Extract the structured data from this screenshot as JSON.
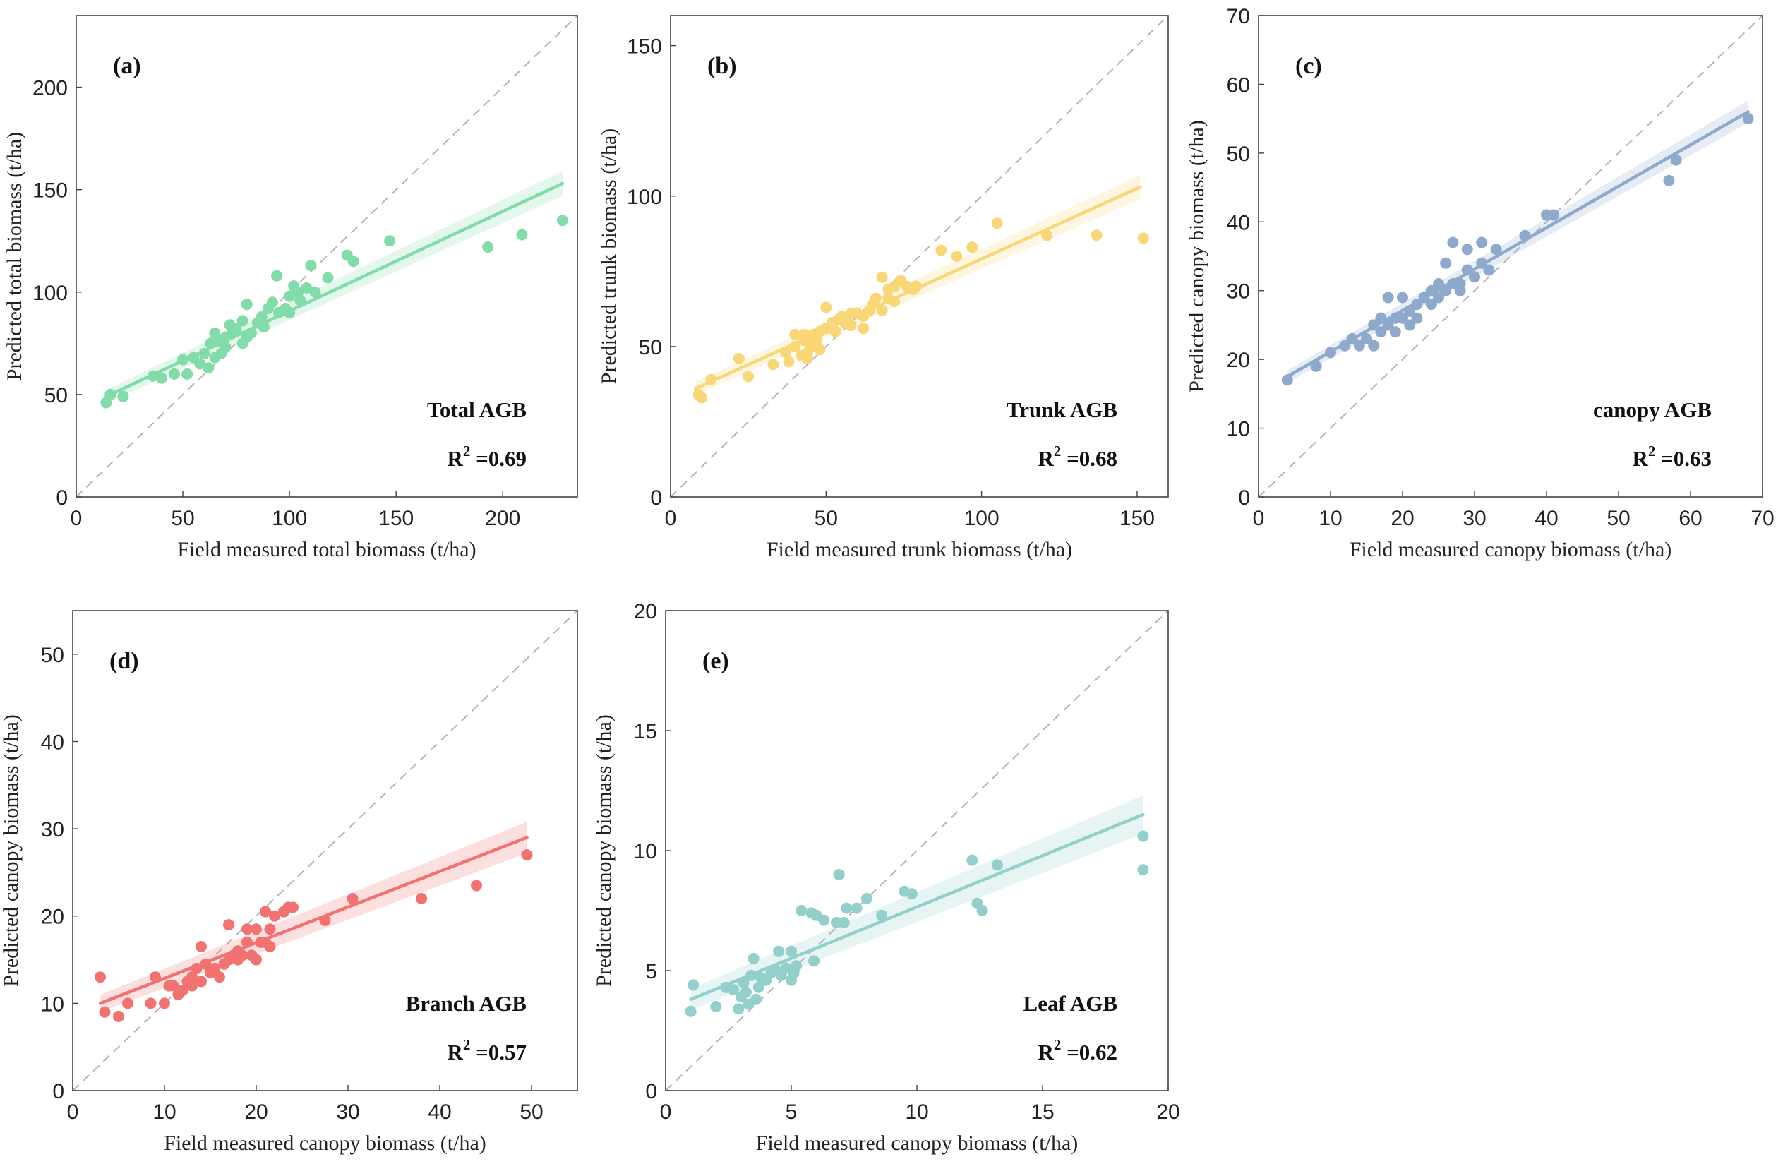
{
  "chart_data": [
    {
      "type": "scatter",
      "panel": "(a)",
      "title": "",
      "xlabel": "Field measured total biomass (t/ha)",
      "ylabel": "Predicted total biomass (t/ha)",
      "xlim": [
        0,
        235
      ],
      "ylim": [
        0,
        235
      ],
      "xticks": [
        0,
        50,
        100,
        150,
        200
      ],
      "yticks": [
        0,
        50,
        100,
        150,
        200
      ],
      "tick_labels_x": [
        "0",
        "50",
        "100",
        "150",
        "200"
      ],
      "tick_labels_y": [
        "0",
        "50",
        "100",
        "150",
        "200"
      ],
      "annotation": "Total AGB",
      "r2_label": "R",
      "r2_sup": "2",
      "r2_value": " =0.69",
      "color": "#82DCAA",
      "fit": {
        "x0": 14,
        "y0": 49,
        "x1": 228,
        "y1": 153,
        "band": 6
      },
      "points": [
        [
          14,
          46
        ],
        [
          16,
          50
        ],
        [
          22,
          49
        ],
        [
          36,
          59
        ],
        [
          40,
          58
        ],
        [
          46,
          60
        ],
        [
          50,
          67
        ],
        [
          52,
          60
        ],
        [
          55,
          68
        ],
        [
          58,
          65
        ],
        [
          60,
          70
        ],
        [
          62,
          63
        ],
        [
          63,
          75
        ],
        [
          65,
          68
        ],
        [
          65,
          80
        ],
        [
          67,
          76
        ],
        [
          68,
          70
        ],
        [
          70,
          73
        ],
        [
          70,
          78
        ],
        [
          72,
          84
        ],
        [
          73,
          80
        ],
        [
          75,
          82
        ],
        [
          78,
          75
        ],
        [
          78,
          86
        ],
        [
          80,
          78
        ],
        [
          80,
          94
        ],
        [
          82,
          80
        ],
        [
          85,
          85
        ],
        [
          87,
          88
        ],
        [
          88,
          83
        ],
        [
          90,
          92
        ],
        [
          92,
          95
        ],
        [
          94,
          108
        ],
        [
          95,
          90
        ],
        [
          98,
          92
        ],
        [
          100,
          98
        ],
        [
          100,
          90
        ],
        [
          102,
          103
        ],
        [
          104,
          100
        ],
        [
          105,
          96
        ],
        [
          108,
          102
        ],
        [
          110,
          113
        ],
        [
          112,
          100
        ],
        [
          118,
          107
        ],
        [
          127,
          118
        ],
        [
          130,
          115
        ],
        [
          147,
          125
        ],
        [
          193,
          122
        ],
        [
          209,
          128
        ],
        [
          228,
          135
        ]
      ]
    },
    {
      "type": "scatter",
      "panel": "(b)",
      "title": "",
      "xlabel": "Field measured trunk biomass (t/ha)",
      "ylabel": "Predicted trunk biomass (t/ha)",
      "xlim": [
        0,
        160
      ],
      "ylim": [
        0,
        160
      ],
      "xticks": [
        0,
        50,
        100,
        150
      ],
      "yticks": [
        0,
        50,
        100,
        150
      ],
      "tick_labels_x": [
        "0",
        "50",
        "100",
        "150"
      ],
      "tick_labels_y": [
        "0",
        "50",
        "100",
        "150"
      ],
      "annotation": "Trunk AGB",
      "r2_label": "R",
      "r2_sup": "2",
      "r2_value": " =0.68",
      "color": "#FAD776",
      "fit": {
        "x0": 8,
        "y0": 36,
        "x1": 151,
        "y1": 103,
        "band": 4
      },
      "points": [
        [
          9,
          34
        ],
        [
          10,
          33
        ],
        [
          13,
          39
        ],
        [
          22,
          46
        ],
        [
          25,
          40
        ],
        [
          33,
          44
        ],
        [
          37,
          48
        ],
        [
          38,
          45
        ],
        [
          40,
          54
        ],
        [
          40,
          50
        ],
        [
          42,
          47
        ],
        [
          43,
          52
        ],
        [
          43,
          54
        ],
        [
          44,
          48
        ],
        [
          44,
          46
        ],
        [
          45,
          51
        ],
        [
          46,
          50
        ],
        [
          46,
          54
        ],
        [
          47,
          52
        ],
        [
          48,
          49
        ],
        [
          48,
          55
        ],
        [
          50,
          63
        ],
        [
          50,
          56
        ],
        [
          52,
          58
        ],
        [
          53,
          55
        ],
        [
          54,
          59
        ],
        [
          55,
          60
        ],
        [
          56,
          58
        ],
        [
          58,
          57
        ],
        [
          58,
          61
        ],
        [
          60,
          61
        ],
        [
          62,
          56
        ],
        [
          62,
          60
        ],
        [
          64,
          62
        ],
        [
          65,
          64
        ],
        [
          66,
          66
        ],
        [
          68,
          62
        ],
        [
          68,
          73
        ],
        [
          70,
          66
        ],
        [
          70,
          69
        ],
        [
          72,
          65
        ],
        [
          72,
          70
        ],
        [
          74,
          72
        ],
        [
          76,
          70
        ],
        [
          78,
          69
        ],
        [
          79,
          70
        ],
        [
          87,
          82
        ],
        [
          92,
          80
        ],
        [
          97,
          83
        ],
        [
          105,
          91
        ],
        [
          121,
          87
        ],
        [
          137,
          87
        ],
        [
          152,
          86
        ]
      ]
    },
    {
      "type": "scatter",
      "panel": "(c)",
      "title": "",
      "xlabel": "Field measured canopy biomass (t/ha)",
      "ylabel": "Predicted canopy biomass (t/ha)",
      "xlim": [
        0,
        70
      ],
      "ylim": [
        0,
        70
      ],
      "xticks": [
        0,
        10,
        20,
        30,
        40,
        50,
        60,
        70
      ],
      "yticks": [
        0,
        10,
        20,
        30,
        40,
        50,
        60,
        70
      ],
      "tick_labels_x": [
        "0",
        "10",
        "20",
        "30",
        "40",
        "50",
        "60",
        "70"
      ],
      "tick_labels_y": [
        "0",
        "10",
        "20",
        "30",
        "40",
        "50",
        "60",
        "70"
      ],
      "annotation": "canopy AGB",
      "r2_label": "R",
      "r2_sup": "2",
      "r2_value": " =0.63",
      "color": "#8FA9CC",
      "fit": {
        "x0": 4,
        "y0": 17.5,
        "x1": 68,
        "y1": 56,
        "band": 1.6
      },
      "points": [
        [
          4,
          17
        ],
        [
          8,
          19
        ],
        [
          10,
          21
        ],
        [
          12,
          22
        ],
        [
          13,
          23
        ],
        [
          14,
          22
        ],
        [
          15,
          23
        ],
        [
          16,
          25
        ],
        [
          16,
          22
        ],
        [
          17,
          26
        ],
        [
          17,
          24
        ],
        [
          18,
          25
        ],
        [
          18,
          29
        ],
        [
          19,
          26
        ],
        [
          19,
          24
        ],
        [
          20,
          26
        ],
        [
          20,
          29
        ],
        [
          21,
          25
        ],
        [
          21,
          27
        ],
        [
          22,
          28
        ],
        [
          22,
          26
        ],
        [
          23,
          29
        ],
        [
          24,
          30
        ],
        [
          24,
          28
        ],
        [
          25,
          29
        ],
        [
          25,
          31
        ],
        [
          26,
          30
        ],
        [
          26,
          34
        ],
        [
          27,
          31
        ],
        [
          27,
          37
        ],
        [
          28,
          31
        ],
        [
          28,
          30
        ],
        [
          29,
          36
        ],
        [
          29,
          33
        ],
        [
          30,
          32
        ],
        [
          31,
          37
        ],
        [
          31,
          34
        ],
        [
          32,
          33
        ],
        [
          33,
          36
        ],
        [
          37,
          38
        ],
        [
          40,
          41
        ],
        [
          41,
          41
        ],
        [
          57,
          46
        ],
        [
          58,
          49
        ],
        [
          68,
          55
        ]
      ]
    },
    {
      "type": "scatter",
      "panel": "(d)",
      "title": "",
      "xlabel": "Field measured canopy biomass (t/ha)",
      "ylabel": "Predicted canopy biomass (t/ha)",
      "xlim": [
        0,
        55
      ],
      "ylim": [
        0,
        55
      ],
      "xticks": [
        0,
        10,
        20,
        30,
        40,
        50
      ],
      "yticks": [
        0,
        10,
        20,
        30,
        40,
        50
      ],
      "tick_labels_x": [
        "0",
        "10",
        "20",
        "30",
        "40",
        "50"
      ],
      "tick_labels_y": [
        "0",
        "10",
        "20",
        "30",
        "40",
        "50"
      ],
      "annotation": "Branch AGB",
      "r2_label": "R",
      "r2_sup": "2",
      "r2_value": " =0.57",
      "color": "#F27272",
      "fit": {
        "x0": 3,
        "y0": 10,
        "x1": 49.5,
        "y1": 29,
        "band": 1.8
      },
      "points": [
        [
          3,
          13
        ],
        [
          3.5,
          9
        ],
        [
          5,
          8.5
        ],
        [
          6,
          10
        ],
        [
          8.5,
          10
        ],
        [
          9,
          13
        ],
        [
          10,
          10
        ],
        [
          10.5,
          12
        ],
        [
          11,
          12
        ],
        [
          11.5,
          11
        ],
        [
          12,
          11.5
        ],
        [
          12.5,
          12.5
        ],
        [
          13,
          13
        ],
        [
          13,
          12
        ],
        [
          13.5,
          14
        ],
        [
          14,
          12.5
        ],
        [
          14,
          16.5
        ],
        [
          14.5,
          14.5
        ],
        [
          15,
          13.5
        ],
        [
          15.5,
          14
        ],
        [
          16,
          13
        ],
        [
          16.5,
          14.5
        ],
        [
          17,
          15
        ],
        [
          17,
          19
        ],
        [
          17.5,
          15.5
        ],
        [
          18,
          16
        ],
        [
          18,
          15
        ],
        [
          18.5,
          15.5
        ],
        [
          19,
          17
        ],
        [
          19,
          18.5
        ],
        [
          19.5,
          15.5
        ],
        [
          20,
          18.5
        ],
        [
          20,
          15
        ],
        [
          20.5,
          17
        ],
        [
          21,
          20.5
        ],
        [
          21,
          17
        ],
        [
          21.5,
          18.5
        ],
        [
          21.5,
          16.5
        ],
        [
          22,
          20
        ],
        [
          23,
          20.5
        ],
        [
          23.5,
          21
        ],
        [
          24,
          21
        ],
        [
          27.5,
          19.5
        ],
        [
          30.5,
          22
        ],
        [
          38,
          22
        ],
        [
          44,
          23.5
        ],
        [
          49.5,
          27
        ]
      ]
    },
    {
      "type": "scatter",
      "panel": "(e)",
      "title": "",
      "xlabel": "Field measured canopy biomass (t/ha)",
      "ylabel": "Predicted canopy biomass (t/ha)",
      "xlim": [
        0,
        20
      ],
      "ylim": [
        0,
        20
      ],
      "xticks": [
        0,
        5,
        10,
        15,
        20
      ],
      "yticks": [
        0,
        5,
        10,
        15,
        20
      ],
      "tick_labels_x": [
        "0",
        "5",
        "10",
        "15",
        "20"
      ],
      "tick_labels_y": [
        "0",
        "5",
        "10",
        "15",
        "20"
      ],
      "annotation": "Leaf AGB",
      "r2_label": "R",
      "r2_sup": "2",
      "r2_value": " =0.62",
      "color": "#93CFCB",
      "fit": {
        "x0": 1,
        "y0": 3.8,
        "x1": 19,
        "y1": 11.5,
        "band": 0.8
      },
      "points": [
        [
          1,
          3.3
        ],
        [
          1.1,
          4.4
        ],
        [
          2,
          3.5
        ],
        [
          2.4,
          4.3
        ],
        [
          2.7,
          4.2
        ],
        [
          2.9,
          3.4
        ],
        [
          3,
          3.9
        ],
        [
          3.1,
          4.5
        ],
        [
          3.2,
          4.1
        ],
        [
          3.3,
          3.6
        ],
        [
          3.4,
          4.8
        ],
        [
          3.5,
          5.5
        ],
        [
          3.6,
          3.8
        ],
        [
          3.7,
          4.3
        ],
        [
          3.8,
          4.7
        ],
        [
          4,
          4.6
        ],
        [
          4.2,
          4.9
        ],
        [
          4.4,
          5.0
        ],
        [
          4.5,
          5.8
        ],
        [
          4.6,
          4.8
        ],
        [
          4.8,
          5.1
        ],
        [
          5,
          4.6
        ],
        [
          5,
          5.8
        ],
        [
          5.1,
          4.9
        ],
        [
          5.2,
          5.2
        ],
        [
          5.4,
          7.5
        ],
        [
          5.8,
          7.4
        ],
        [
          5.9,
          5.4
        ],
        [
          6,
          7.3
        ],
        [
          6.3,
          7.1
        ],
        [
          6.8,
          7.0
        ],
        [
          6.9,
          9.0
        ],
        [
          7.1,
          7.0
        ],
        [
          7.2,
          7.6
        ],
        [
          7.6,
          7.6
        ],
        [
          8,
          8.0
        ],
        [
          8.6,
          7.3
        ],
        [
          9.5,
          8.3
        ],
        [
          9.8,
          8.2
        ],
        [
          12.2,
          9.6
        ],
        [
          12.4,
          7.8
        ],
        [
          12.6,
          7.5
        ],
        [
          13.2,
          9.4
        ],
        [
          19,
          10.6
        ],
        [
          19,
          9.2
        ]
      ]
    }
  ]
}
